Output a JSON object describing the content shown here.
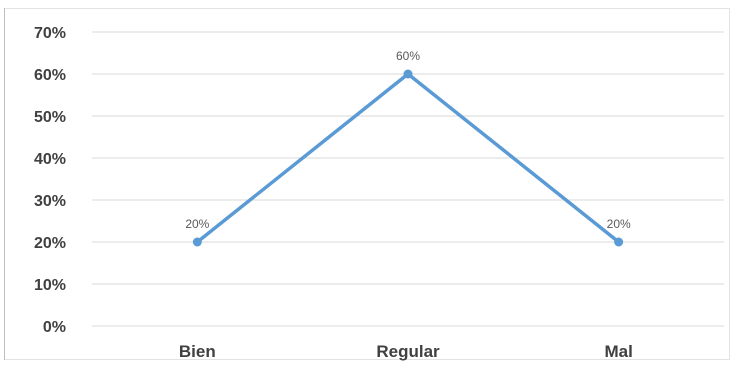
{
  "chart_data": {
    "type": "line",
    "title": "",
    "xlabel": "",
    "ylabel": "",
    "categories": [
      "Bien",
      "Regular",
      "Mal"
    ],
    "series": [
      {
        "values": [
          20,
          60,
          20
        ]
      }
    ],
    "data_labels": [
      "20%",
      "60%",
      "20%"
    ],
    "ylim": [
      0,
      70
    ],
    "y_ticks": [
      "0%",
      "10%",
      "20%",
      "30%",
      "40%",
      "50%",
      "60%",
      "70%"
    ],
    "grid": true,
    "legend": "none",
    "line_color": "#5b9bd5",
    "grid_color": "#d9d9d9"
  }
}
